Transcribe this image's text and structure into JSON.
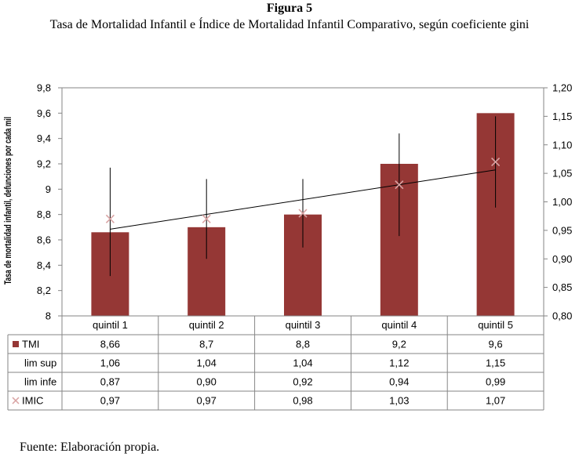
{
  "figure_label": "Figura 5",
  "figure_title": "Tasa de Mortalidad Infantil e Índice de Mortalidad Infantil Comparativo, según coeficiente gini",
  "source": "Fuente: Elaboración propia.",
  "chart_data": {
    "type": "bar",
    "categories": [
      "quintil 1",
      "quintil 2",
      "quintil 3",
      "quintil 4",
      "quintil 5"
    ],
    "ylabel": "Tasa de mortalidad infantil, defunciones por cada mil",
    "ylim": [
      8,
      9.8
    ],
    "y_ticks": [
      "9,8",
      "9,6",
      "9,4",
      "9,2",
      "9",
      "8,8",
      "8,6",
      "8,4",
      "8,2",
      "8"
    ],
    "y2lim": [
      0.8,
      1.2
    ],
    "y2_ticks": [
      "1,20",
      "1,15",
      "1,10",
      "1,05",
      "1,00",
      "0,95",
      "0,90",
      "0,85",
      "0,80"
    ],
    "grid": false,
    "legend": "data-table",
    "colors": {
      "bar": "#953735",
      "imic": "#d9a3a3",
      "line": "#000000",
      "errorbar": "#000000"
    },
    "series": [
      {
        "name": "TMI",
        "axis": "left",
        "kind": "bar",
        "values": [
          8.66,
          8.7,
          8.8,
          9.2,
          9.6
        ],
        "labels": [
          "8,66",
          "8,7",
          "8,8",
          "9,2",
          "9,6"
        ]
      },
      {
        "name": "lim sup",
        "axis": "right",
        "kind": "errorbar-upper",
        "values": [
          1.06,
          1.04,
          1.04,
          1.12,
          1.15
        ],
        "labels": [
          "1,06",
          "1,04",
          "1,04",
          "1,12",
          "1,15"
        ]
      },
      {
        "name": "lim infe",
        "axis": "right",
        "kind": "errorbar-lower",
        "values": [
          0.87,
          0.9,
          0.92,
          0.94,
          0.99
        ],
        "labels": [
          "0,87",
          "0,90",
          "0,92",
          "0,94",
          "0,99"
        ]
      },
      {
        "name": "IMIC",
        "axis": "right",
        "kind": "marker",
        "values": [
          0.97,
          0.97,
          0.98,
          1.03,
          1.07
        ],
        "labels": [
          "0,97",
          "0,97",
          "0,98",
          "1,03",
          "1,07"
        ]
      }
    ],
    "trendline": {
      "axis": "right",
      "start": 0.952,
      "end": 1.056
    }
  }
}
